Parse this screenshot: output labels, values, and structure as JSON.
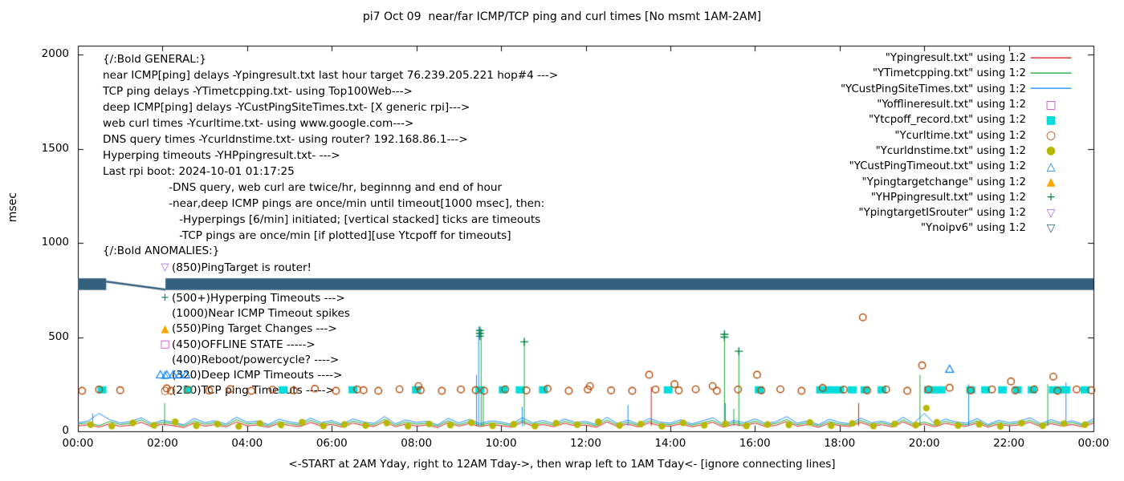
{
  "title": "pi7 Oct 09  near/far ICMP/TCP ping and curl times [No msmt 1AM-2AM]",
  "axes": {
    "ylabel": "msec",
    "xlabel": "<-START at 2AM Yday, right to 12AM Tday->, then wrap left to 1AM Tday<- [ignore connecting lines]",
    "y_ticks": [
      "0",
      "500",
      "1000",
      "1500",
      "2000"
    ],
    "x_ticks": [
      "00:00",
      "02:00",
      "04:00",
      "06:00",
      "08:00",
      "10:00",
      "12:00",
      "14:00",
      "16:00",
      "18:00",
      "20:00",
      "22:00",
      "00:00"
    ]
  },
  "legend": {
    "items": [
      {
        "label": "\"Ypingresult.txt\" using 1:2",
        "char": "──────",
        "color": "#d40000"
      },
      {
        "label": "\"YTimetcpping.txt\" using 1:2",
        "char": "──────",
        "color": "#00a020"
      },
      {
        "label": "\"YCustPingSiteTimes.txt\" using 1:2",
        "char": "──────",
        "color": "#0080ff"
      },
      {
        "label": "\"Yofflineresult.txt\" using 1:2",
        "char": "□",
        "color": "#cc33cc"
      },
      {
        "label": "\"Ytcpoff_record.txt\" using 1:2",
        "char": "■",
        "color": "#00dddd"
      },
      {
        "label": "\"Ycurltime.txt\" using 1:2",
        "char": "○",
        "color": "#b34700"
      },
      {
        "label": "\"Ycurldnstime.txt\" using 1:2",
        "char": "●",
        "color": "#b8b800"
      },
      {
        "label": "\"YCustPingTimeout.txt\" using 1:2",
        "char": "△",
        "color": "#0080ff"
      },
      {
        "label": "\"Ypingtargetchange\" using 1:2",
        "char": "▲",
        "color": "#ffa500"
      },
      {
        "label": "\"YHPpingresult.txt\" using 1:2",
        "char": "+",
        "color": "#008040"
      },
      {
        "label": "\"YpingtargetISrouter\" using 1:2",
        "char": "▽",
        "color": "#aa66ee"
      },
      {
        "label": "\"Ynoipv6\" using 1:2",
        "char": "▽",
        "color": "#33607d"
      }
    ]
  },
  "annotations": {
    "general": [
      "{/:Bold GENERAL:}",
      "near ICMP[ping] delays -Ypingresult.txt last hour target 76.239.205.221 hop#4 --->",
      "TCP ping delays -YTimetcpping.txt- using Top100Web--->",
      "deep ICMP[ping] delays -YCustPingSiteTimes.txt- [X generic rpi]--->",
      "web curl times -Ycurltime.txt- using www.google.com--->",
      "DNS query times -Ycurldnstime.txt- using router? 192.168.86.1--->",
      "Hyperping timeouts -YHPpingresult.txt- --->",
      "Last rpi boot: 2024-10-01 01:17:25",
      "                   -DNS query, web curl are twice/hr, beginnng and end of hour",
      "                   -near,deep ICMP pings are once/min until timeout[1000 msec], then:",
      "                      -Hyperpings [6/min] initiated; [vertical stacked] ticks are timeouts",
      "                      -TCP pings are once/min [if plotted][use Ytcpoff for timeouts]"
    ],
    "anomalies_header": "{/:Bold ANOMALIES:}",
    "anomalies": [
      {
        "char": "▽",
        "color": "#aa66ee",
        "text": "(850)PingTarget is router!"
      },
      {
        "char": "",
        "color": "#000000",
        "text": ""
      },
      {
        "char": "+",
        "color": "#008040",
        "text": "(500+)Hyperping Timeouts --->"
      },
      {
        "char": "",
        "color": "#000000",
        "text": "(1000)Near ICMP Timeout spikes"
      },
      {
        "char": "▲",
        "color": "#ffa500",
        "text": "(550)Ping Target Changes --->"
      },
      {
        "char": "□",
        "color": "#cc33cc",
        "text": "(450)OFFLINE STATE ----->"
      },
      {
        "char": "",
        "color": "#000000",
        "text": "(400)Reboot/powercycle? ---->"
      },
      {
        "char": "△",
        "color": "#0080ff",
        "text": "(320)Deep ICMP Timeouts ---->"
      },
      {
        "char": "○",
        "color": "#b34700",
        "text": "(220)TCP ping Timeouts ----->"
      }
    ]
  },
  "chart_data": {
    "type": "line",
    "title": "pi7 Oct 09  near/far ICMP/TCP ping and curl times [No msmt 1AM-2AM]",
    "xlabel": "<-START at 2AM Yday, right to 12AM Tday->, then wrap left to 1AM Tday<- [ignore connecting lines]",
    "ylabel": "msec",
    "xlim": [
      0,
      24
    ],
    "ylim": [
      0,
      2000
    ],
    "grid": false,
    "legend_position": "top-right-inside",
    "series": [
      {
        "name": "Ypingresult",
        "type": "line",
        "color": "#d40000",
        "x0": 0,
        "dx": 0.25,
        "y": [
          28,
          35,
          22,
          40,
          26,
          33,
          48,
          24,
          38,
          30,
          20,
          45,
          27,
          36,
          23,
          50,
          29,
          34,
          21,
          42,
          31,
          25,
          47,
          28,
          37,
          22,
          44,
          30,
          26,
          52,
          24,
          39,
          28,
          33,
          20,
          46,
          27,
          41,
          25,
          35,
          30,
          22,
          48,
          28,
          36,
          24,
          43,
          29,
          33,
          21,
          50,
          26,
          38,
          23,
          45,
          30,
          27,
          40,
          24,
          34,
          48,
          22,
          37,
          28,
          44,
          25,
          32,
          52,
          27,
          36,
          21,
          42,
          30,
          25,
          47,
          28,
          35,
          23,
          50,
          26,
          39,
          24,
          43,
          31,
          27,
          45,
          22,
          38,
          29,
          34,
          48,
          25,
          41,
          28,
          36,
          23,
          44
        ],
        "spikes": [
          [
            13.55,
            235
          ],
          [
            18.45,
            150
          ]
        ]
      },
      {
        "name": "YTimetcpping",
        "type": "line",
        "color": "#00a020",
        "x0": 0,
        "dx": 0.25,
        "y": [
          38,
          45,
          30,
          52,
          36,
          43,
          60,
          32,
          48,
          40,
          28,
          55,
          37,
          46,
          31,
          62,
          39,
          44,
          29,
          52,
          41,
          33,
          58,
          36,
          47,
          30,
          54,
          40,
          34,
          64,
          32,
          49,
          38,
          43,
          28,
          56,
          35,
          51,
          33,
          45,
          40,
          30,
          58,
          36,
          46,
          32,
          53,
          39,
          43,
          29,
          60,
          34,
          48,
          31,
          55,
          40,
          35,
          50,
          32,
          44,
          58,
          30,
          47,
          36,
          54,
          33,
          42,
          62,
          35,
          46,
          29,
          52,
          38,
          33,
          57,
          36,
          45,
          31,
          60,
          34,
          49,
          32,
          53,
          41,
          35,
          55,
          30,
          48,
          37,
          44,
          58,
          33,
          51,
          36,
          46,
          31,
          54
        ],
        "spikes": [
          [
            2.05,
            150
          ],
          [
            9.53,
            545
          ],
          [
            9.58,
            200
          ],
          [
            10.55,
            480
          ],
          [
            15.28,
            500
          ],
          [
            15.5,
            120
          ],
          [
            15.62,
            430
          ],
          [
            19.9,
            300
          ],
          [
            22.92,
            250
          ]
        ]
      },
      {
        "name": "YCustPingSiteTimes",
        "type": "line",
        "color": "#0080ff",
        "x0": 0,
        "dx": 0.25,
        "y": [
          45,
          55,
          95,
          62,
          44,
          52,
          72,
          40,
          58,
          48,
          35,
          68,
          46,
          56,
          39,
          75,
          48,
          54,
          36,
          64,
          50,
          41,
          70,
          45,
          57,
          37,
          66,
          49,
          42,
          78,
          40,
          60,
          47,
          53,
          34,
          69,
          44,
          63,
          41,
          55,
          49,
          37,
          72,
          45,
          57,
          40,
          65,
          48,
          52,
          36,
          74,
          42,
          59,
          38,
          68,
          49,
          43,
          61,
          39,
          54,
          72,
          37,
          57,
          45,
          66,
          41,
          51,
          78,
          43,
          56,
          35,
          64,
          47,
          40,
          70,
          45,
          54,
          38,
          75,
          42,
          95,
          39,
          65,
          50,
          43,
          68,
          36,
          58,
          46,
          53,
          72,
          40,
          62,
          44,
          56,
          37,
          66
        ],
        "spikes": [
          [
            0.35,
            95
          ],
          [
            9.42,
            300
          ],
          [
            9.47,
            555
          ],
          [
            10.5,
            130
          ],
          [
            13.0,
            140
          ],
          [
            15.3,
            150
          ],
          [
            21.05,
            250
          ],
          [
            23.35,
            260
          ]
        ]
      },
      {
        "name": "Yofflineresult",
        "type": "square-open",
        "color": "#cc33cc",
        "points": []
      },
      {
        "name": "Ytcpoff_record",
        "type": "square-filled",
        "color": "#00dddd",
        "y_const": 220,
        "xs": [
          0.57,
          2.6,
          4.85,
          6.5,
          8.0,
          9.5,
          10.05,
          10.45,
          11.0,
          13.95,
          16.1,
          17.55,
          17.7,
          17.85,
          18.0,
          18.3,
          18.6,
          19.0,
          20.1,
          20.25,
          20.4,
          21.1,
          21.45,
          21.85,
          22.2,
          22.55,
          23.05,
          23.2,
          23.35,
          23.8
        ]
      },
      {
        "name": "Ycurltime",
        "type": "circle-open",
        "color": "#b34700",
        "points": [
          [
            0.1,
            215
          ],
          [
            0.5,
            222
          ],
          [
            1.0,
            218
          ],
          [
            2.1,
            228
          ],
          [
            2.2,
            215
          ],
          [
            2.6,
            220
          ],
          [
            3.1,
            216
          ],
          [
            3.6,
            224
          ],
          [
            4.1,
            215
          ],
          [
            4.6,
            221
          ],
          [
            5.1,
            217
          ],
          [
            5.6,
            226
          ],
          [
            6.1,
            215
          ],
          [
            6.6,
            222
          ],
          [
            6.75,
            218
          ],
          [
            7.1,
            215
          ],
          [
            7.6,
            223
          ],
          [
            8.05,
            240
          ],
          [
            8.1,
            218
          ],
          [
            8.6,
            215
          ],
          [
            9.05,
            222
          ],
          [
            9.4,
            218
          ],
          [
            9.6,
            215
          ],
          [
            10.1,
            223
          ],
          [
            10.6,
            217
          ],
          [
            11.1,
            226
          ],
          [
            11.6,
            215
          ],
          [
            12.05,
            222
          ],
          [
            12.1,
            240
          ],
          [
            12.6,
            217
          ],
          [
            13.1,
            215
          ],
          [
            13.5,
            300
          ],
          [
            13.65,
            222
          ],
          [
            14.1,
            250
          ],
          [
            14.2,
            217
          ],
          [
            14.6,
            223
          ],
          [
            15.0,
            240
          ],
          [
            15.1,
            215
          ],
          [
            15.6,
            222
          ],
          [
            16.05,
            300
          ],
          [
            16.15,
            217
          ],
          [
            16.6,
            223
          ],
          [
            17.1,
            215
          ],
          [
            17.6,
            230
          ],
          [
            18.1,
            221
          ],
          [
            18.55,
            605
          ],
          [
            18.65,
            217
          ],
          [
            19.1,
            222
          ],
          [
            19.6,
            215
          ],
          [
            19.95,
            350
          ],
          [
            20.1,
            222
          ],
          [
            20.6,
            231
          ],
          [
            21.1,
            217
          ],
          [
            21.6,
            222
          ],
          [
            22.05,
            265
          ],
          [
            22.15,
            217
          ],
          [
            22.6,
            223
          ],
          [
            23.05,
            290
          ],
          [
            23.15,
            215
          ],
          [
            23.6,
            222
          ],
          [
            23.95,
            218
          ]
        ]
      },
      {
        "name": "Ycurldnstime",
        "type": "circle-filled",
        "color": "#b8b800",
        "points": [
          [
            0.3,
            35
          ],
          [
            0.8,
            28
          ],
          [
            1.3,
            45
          ],
          [
            1.8,
            32
          ],
          [
            2.3,
            50
          ],
          [
            2.8,
            30
          ],
          [
            3.3,
            38
          ],
          [
            3.8,
            26
          ],
          [
            4.3,
            42
          ],
          [
            4.8,
            34
          ],
          [
            5.3,
            48
          ],
          [
            5.8,
            29
          ],
          [
            6.3,
            36
          ],
          [
            6.8,
            31
          ],
          [
            7.3,
            44
          ],
          [
            7.8,
            27
          ],
          [
            8.3,
            39
          ],
          [
            8.8,
            33
          ],
          [
            9.3,
            46
          ],
          [
            9.8,
            30
          ],
          [
            10.3,
            37
          ],
          [
            10.8,
            28
          ],
          [
            11.3,
            43
          ],
          [
            11.8,
            35
          ],
          [
            12.3,
            50
          ],
          [
            12.8,
            31
          ],
          [
            13.3,
            38
          ],
          [
            13.8,
            27
          ],
          [
            14.3,
            45
          ],
          [
            14.8,
            32
          ],
          [
            15.3,
            40
          ],
          [
            15.8,
            29
          ],
          [
            16.3,
            36
          ],
          [
            16.8,
            34
          ],
          [
            17.3,
            47
          ],
          [
            17.8,
            30
          ],
          [
            18.3,
            42
          ],
          [
            18.8,
            28
          ],
          [
            19.3,
            39
          ],
          [
            19.8,
            33
          ],
          [
            20.05,
            123
          ],
          [
            20.3,
            48
          ],
          [
            20.8,
            31
          ],
          [
            21.3,
            37
          ],
          [
            21.8,
            26
          ],
          [
            22.3,
            44
          ],
          [
            22.8,
            30
          ],
          [
            23.3,
            41
          ],
          [
            23.8,
            35
          ]
        ]
      },
      {
        "name": "YCustPingTimeout",
        "type": "triangle-up-open",
        "color": "#0080ff",
        "points": [
          [
            1.95,
            300
          ],
          [
            2.1,
            300
          ],
          [
            2.25,
            300
          ],
          [
            2.4,
            300
          ],
          [
            2.55,
            300
          ],
          [
            20.6,
            330
          ]
        ]
      },
      {
        "name": "Ypingtargetchange",
        "type": "triangle-up-filled",
        "color": "#ffa500",
        "points": []
      },
      {
        "name": "YHPpingresult",
        "type": "plus",
        "color": "#008040",
        "points": [
          [
            9.5,
            505
          ],
          [
            9.5,
            520
          ],
          [
            9.5,
            535
          ],
          [
            10.55,
            475
          ],
          [
            15.28,
            500
          ],
          [
            15.28,
            515
          ],
          [
            15.62,
            425
          ]
        ]
      },
      {
        "name": "YpingtargetISrouter",
        "type": "triangle-down-open",
        "color": "#aa66ee",
        "points": []
      },
      {
        "name": "Ynoipv6",
        "type": "band",
        "color": "#33607d",
        "segments": [
          [
            0,
            0.67
          ],
          [
            2.07,
            24
          ]
        ],
        "band_v": [
          750,
          812
        ],
        "connector": [
          [
            0.67,
            795
          ],
          [
            2.07,
            752
          ]
        ]
      }
    ]
  }
}
